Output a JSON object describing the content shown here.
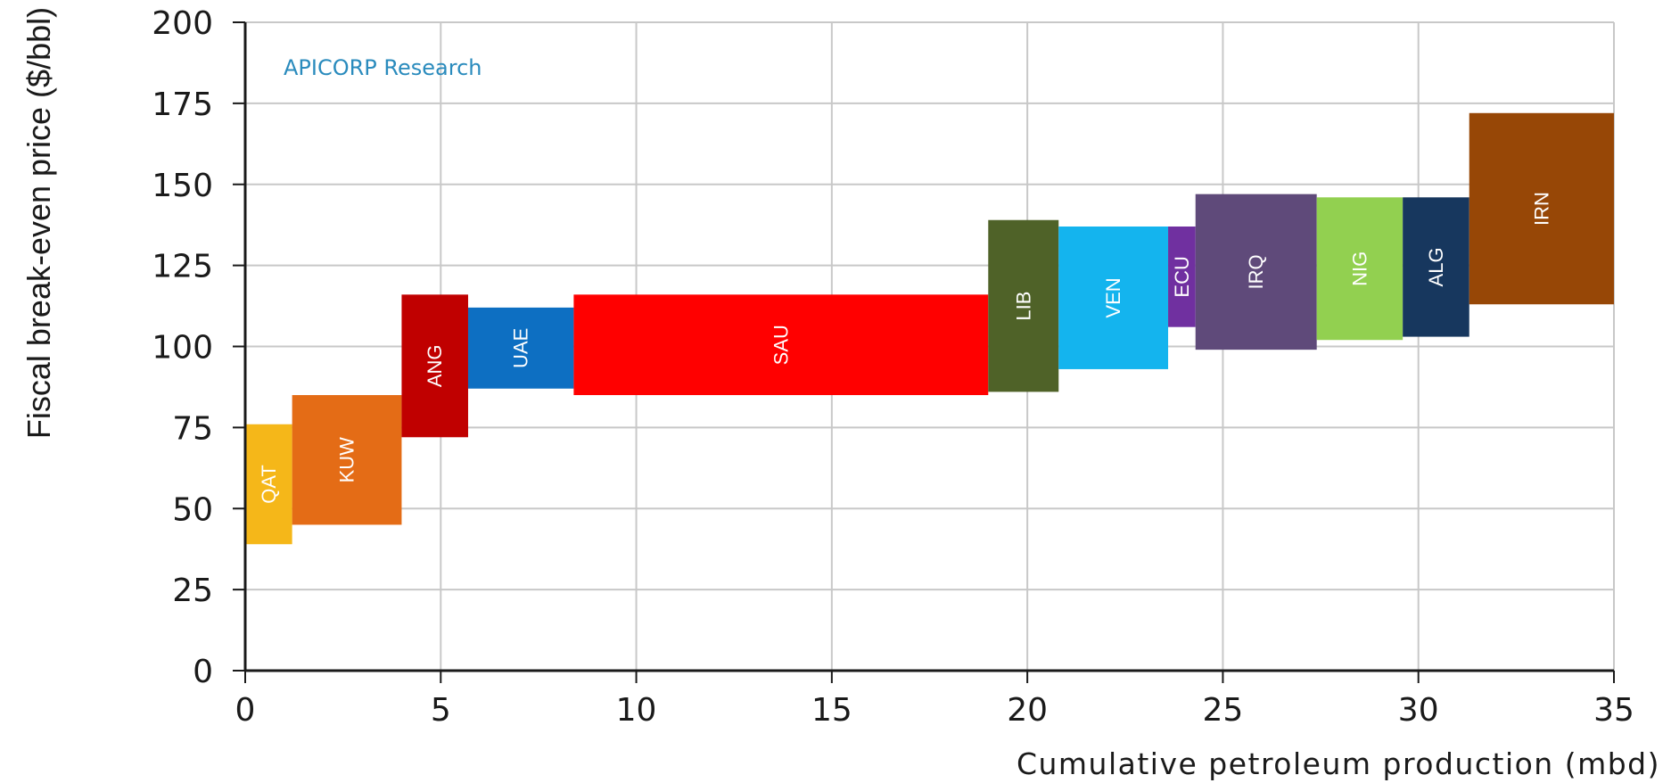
{
  "chart_data": {
    "type": "bar",
    "subtype": "variable-width",
    "xlabel": "Cumulative petroleum production (mbd)",
    "ylabel": "Fiscal break-even price ($/bbl)",
    "annotation": "APICORP Research",
    "xlim": [
      0,
      35
    ],
    "ylim": [
      0,
      200
    ],
    "x_ticks": [
      "0",
      "5",
      "10",
      "15",
      "20",
      "25",
      "30",
      "35"
    ],
    "y_ticks": [
      "0",
      "25",
      "50",
      "75",
      "100",
      "125",
      "150",
      "175",
      "200"
    ],
    "grid": true,
    "bars": [
      {
        "label": "QAT",
        "x_start": 0.0,
        "x_end": 1.2,
        "y_low": 39,
        "y_high": 76,
        "color": "#f5b719"
      },
      {
        "label": "KUW",
        "x_start": 1.2,
        "x_end": 4.0,
        "y_low": 45,
        "y_high": 85,
        "color": "#e46c16"
      },
      {
        "label": "ANG",
        "x_start": 4.0,
        "x_end": 5.7,
        "y_low": 72,
        "y_high": 116,
        "color": "#c00000"
      },
      {
        "label": "UAE",
        "x_start": 5.7,
        "x_end": 8.4,
        "y_low": 87,
        "y_high": 112,
        "color": "#0d6fc2"
      },
      {
        "label": "SAU",
        "x_start": 8.4,
        "x_end": 19.0,
        "y_low": 85,
        "y_high": 116,
        "color": "#ff0000"
      },
      {
        "label": "LIB",
        "x_start": 19.0,
        "x_end": 20.8,
        "y_low": 86,
        "y_high": 139,
        "color": "#4f6228"
      },
      {
        "label": "VEN",
        "x_start": 20.8,
        "x_end": 23.6,
        "y_low": 93,
        "y_high": 137,
        "color": "#14b4ee"
      },
      {
        "label": "ECU",
        "x_start": 23.6,
        "x_end": 24.3,
        "y_low": 106,
        "y_high": 137,
        "color": "#7030a0"
      },
      {
        "label": "IRQ",
        "x_start": 24.3,
        "x_end": 27.4,
        "y_low": 99,
        "y_high": 147,
        "color": "#5f4a7a"
      },
      {
        "label": "NIG",
        "x_start": 27.4,
        "x_end": 29.6,
        "y_low": 102,
        "y_high": 146,
        "color": "#92d050"
      },
      {
        "label": "ALG",
        "x_start": 29.6,
        "x_end": 31.3,
        "y_low": 103,
        "y_high": 146,
        "color": "#17375e"
      },
      {
        "label": "IRN",
        "x_start": 31.3,
        "x_end": 35.0,
        "y_low": 113,
        "y_high": 172,
        "color": "#974706"
      }
    ]
  }
}
